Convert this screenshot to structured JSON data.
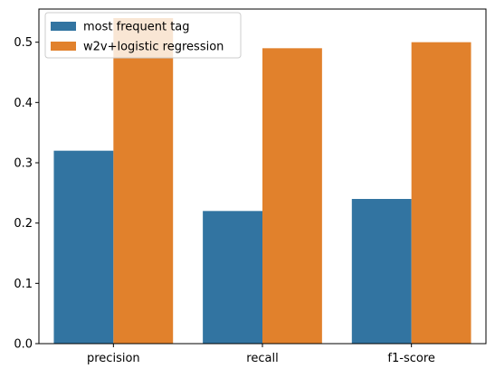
{
  "chart_data": {
    "type": "bar",
    "categories": [
      "precision",
      "recall",
      "f1-score"
    ],
    "series": [
      {
        "name": "most frequent tag",
        "values": [
          0.32,
          0.22,
          0.24
        ],
        "color": "#3274a1"
      },
      {
        "name": "w2v+logistic regression",
        "values": [
          0.54,
          0.49,
          0.5
        ],
        "color": "#e1812c"
      }
    ],
    "y_ticks": [
      "0.0",
      "0.1",
      "0.2",
      "0.3",
      "0.4",
      "0.5"
    ],
    "ylim": [
      0,
      0.555
    ],
    "grid": false,
    "legend_position": "top-left"
  }
}
